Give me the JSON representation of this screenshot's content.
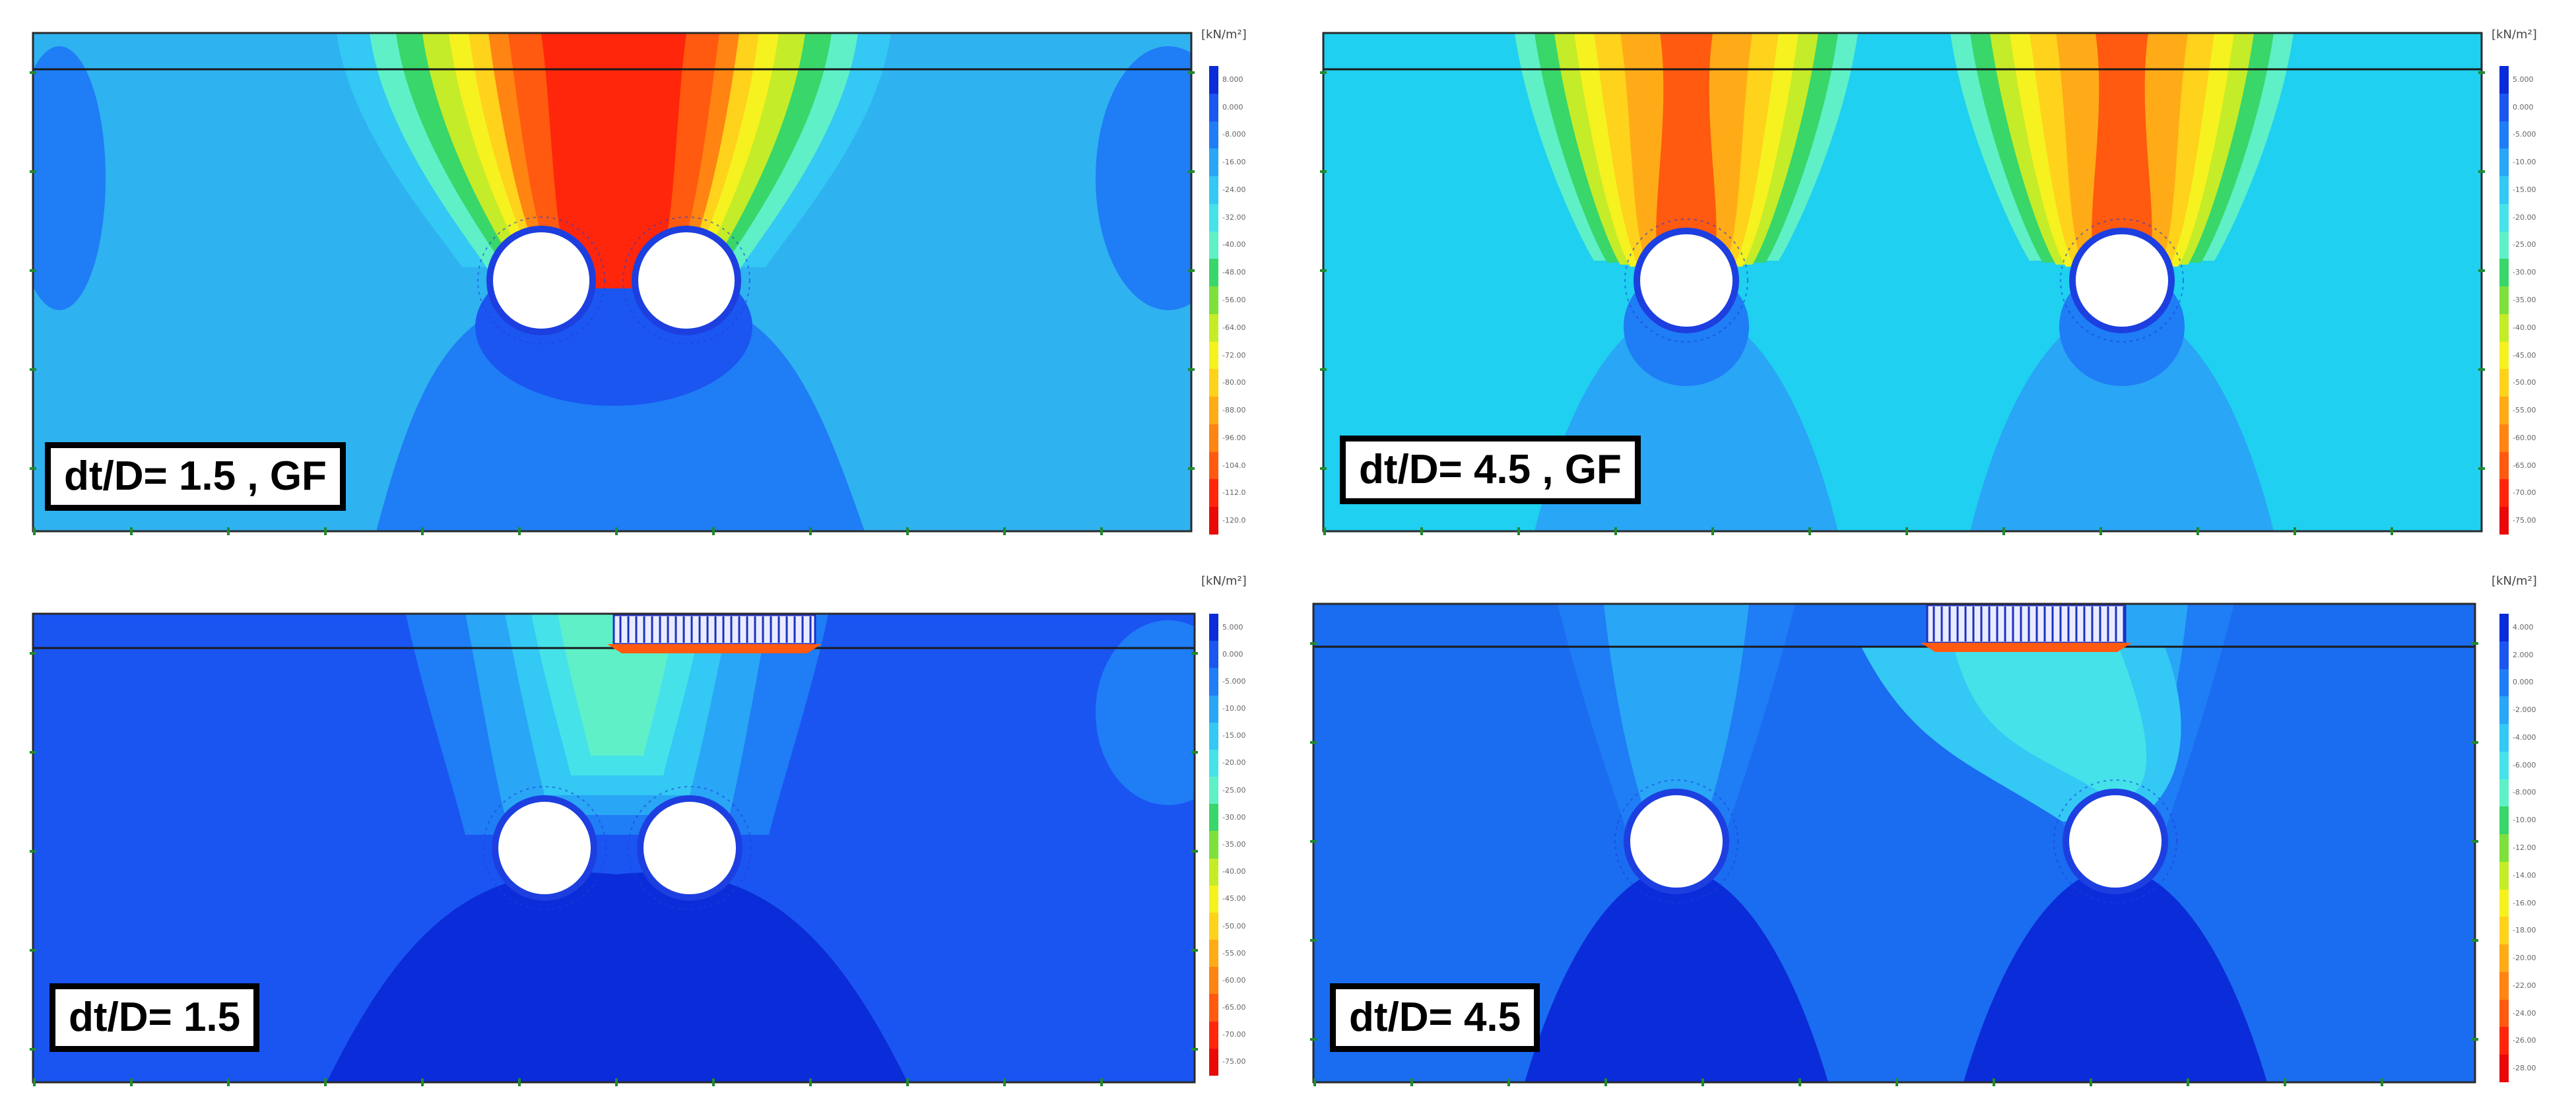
{
  "palette": {
    "outer_ring": "#1d3fe0",
    "tunnel_fill": "#ffffff",
    "frame_line": "#1a1a1a",
    "boundary_tick": "#1f8a2e",
    "footing_fill": "#e8ecff",
    "footing_stroke": "#1f2fc0"
  },
  "legend_scale": [
    "#0b2cd9",
    "#1b56f0",
    "#1f7df5",
    "#29a6f6",
    "#34c8f4",
    "#46e2ea",
    "#5ff0c8",
    "#39d66a",
    "#7ee03a",
    "#c5ec28",
    "#f5f21f",
    "#ffd21c",
    "#ffab17",
    "#ff8412",
    "#ff5a0f",
    "#ff260b",
    "#e90a08"
  ],
  "panels": [
    {
      "id": "top-left",
      "label": "dt/D= 1.5 , GF",
      "unit": "[kN/m²]",
      "has_footing": false,
      "background": "#2fb2f0",
      "legend_ticks": [
        "8.000",
        "0.000",
        "-8.000",
        "-16.00",
        "-24.00",
        "-32.00",
        "-40.00",
        "-48.00",
        "-56.00",
        "-64.00",
        "-72.00",
        "-80.00",
        "-88.00",
        "-96.00",
        "-104.0",
        "-112.0",
        "-120.0"
      ]
    },
    {
      "id": "top-right",
      "label": "dt/D= 4.5 , GF",
      "unit": "[kN/m²]",
      "has_footing": false,
      "background": "#1fd0f0",
      "legend_ticks": [
        "5.000",
        "0.000",
        "-5.000",
        "-10.00",
        "-15.00",
        "-20.00",
        "-25.00",
        "-30.00",
        "-35.00",
        "-40.00",
        "-45.00",
        "-50.00",
        "-55.00",
        "-60.00",
        "-65.00",
        "-70.00",
        "-75.00"
      ]
    },
    {
      "id": "bottom-left",
      "label": "dt/D= 1.5",
      "unit": "[kN/m²]",
      "has_footing": true,
      "background": "#1a55f2",
      "legend_ticks": [
        "5.000",
        "0.000",
        "-5.000",
        "-10.00",
        "-15.00",
        "-20.00",
        "-25.00",
        "-30.00",
        "-35.00",
        "-40.00",
        "-45.00",
        "-50.00",
        "-55.00",
        "-60.00",
        "-65.00",
        "-70.00",
        "-75.00"
      ]
    },
    {
      "id": "bottom-right",
      "label": "dt/D= 4.5",
      "unit": "[kN/m²]",
      "has_footing": true,
      "background": "#1a6cf0",
      "legend_ticks": [
        "4.000",
        "2.000",
        "0.000",
        "-2.000",
        "-4.000",
        "-6.000",
        "-8.000",
        "-10.00",
        "-12.00",
        "-14.00",
        "-16.00",
        "-18.00",
        "-20.00",
        "-22.00",
        "-24.00",
        "-26.00",
        "-28.00"
      ]
    }
  ]
}
